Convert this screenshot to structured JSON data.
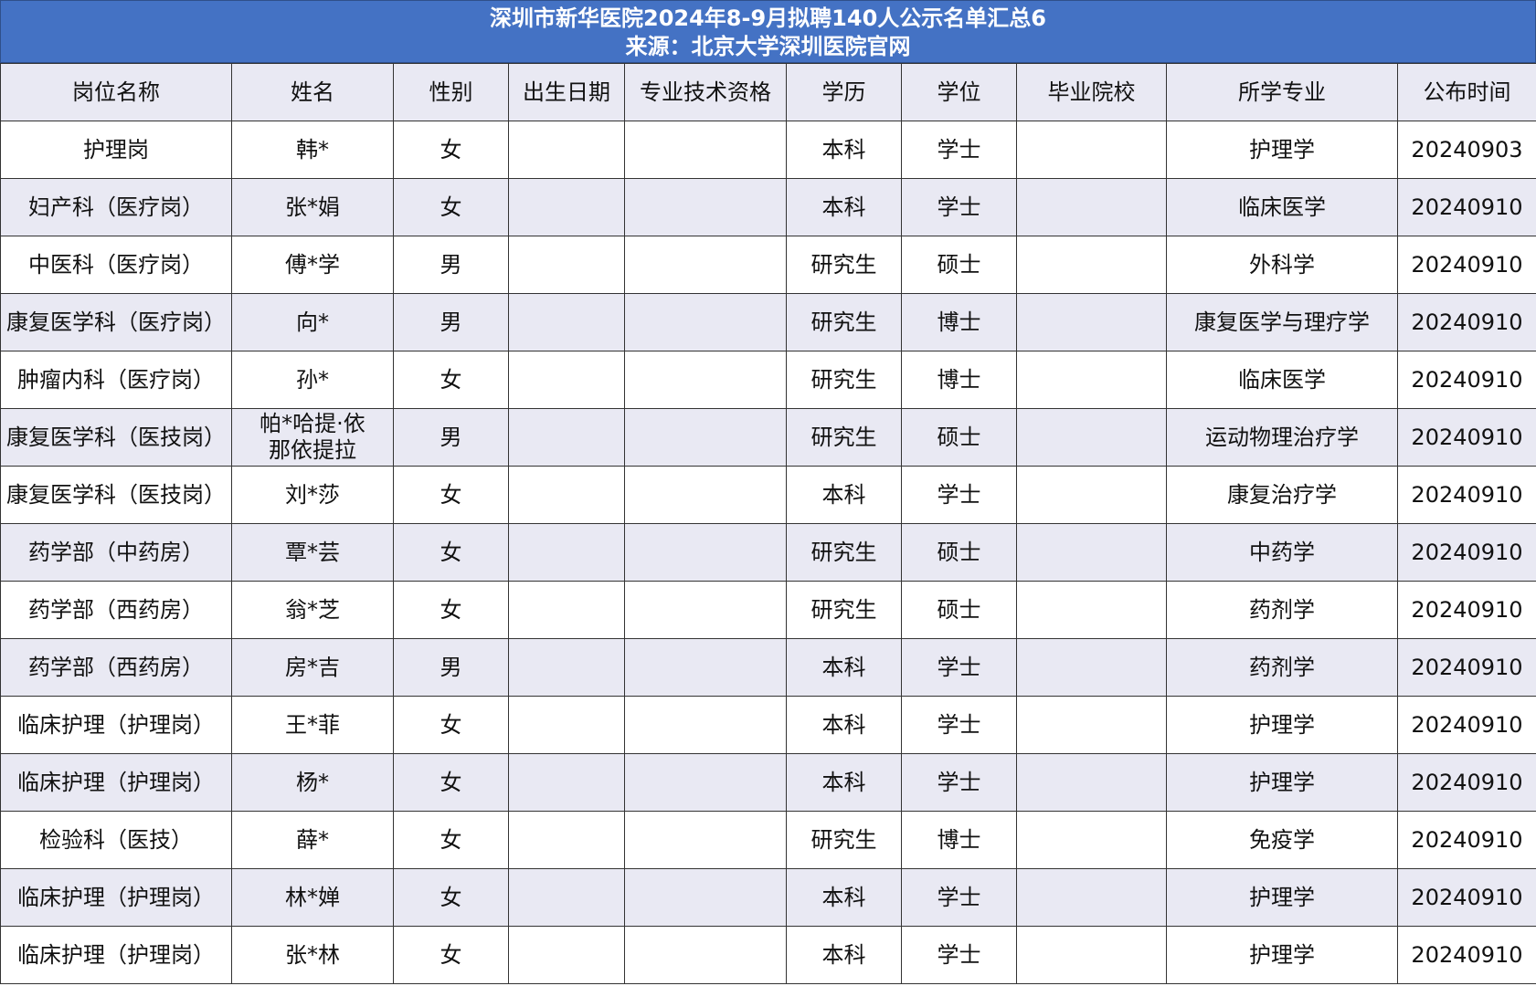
{
  "title": {
    "line1": "深圳市新华医院2024年8-9月拟聘140人公示名单汇总6",
    "line2": "来源：北京大学深圳医院官网"
  },
  "colors": {
    "title_bg": "#4472c4",
    "stripe": "#e9e9f3"
  },
  "columns": [
    "岗位名称",
    "姓名",
    "性别",
    "出生日期",
    "专业技术资格",
    "学历",
    "学位",
    "毕业院校",
    "所学专业",
    "公布时间"
  ],
  "rows": [
    [
      "护理岗",
      "韩*",
      "女",
      "",
      "",
      "本科",
      "学士",
      "",
      "护理学",
      "20240903"
    ],
    [
      "妇产科（医疗岗）",
      "张*娟",
      "女",
      "",
      "",
      "本科",
      "学士",
      "",
      "临床医学",
      "20240910"
    ],
    [
      "中医科（医疗岗）",
      "傅*学",
      "男",
      "",
      "",
      "研究生",
      "硕士",
      "",
      "外科学",
      "20240910"
    ],
    [
      "康复医学科（医疗岗）",
      "向*",
      "男",
      "",
      "",
      "研究生",
      "博士",
      "",
      "康复医学与理疗学",
      "20240910"
    ],
    [
      "肿瘤内科（医疗岗）",
      "孙*",
      "女",
      "",
      "",
      "研究生",
      "博士",
      "",
      "临床医学",
      "20240910"
    ],
    [
      "康复医学科（医技岗）",
      "帕*哈提·依那依提拉",
      "男",
      "",
      "",
      "研究生",
      "硕士",
      "",
      "运动物理治疗学",
      "20240910"
    ],
    [
      "康复医学科（医技岗）",
      "刘*莎",
      "女",
      "",
      "",
      "本科",
      "学士",
      "",
      "康复治疗学",
      "20240910"
    ],
    [
      "药学部（中药房）",
      "覃*芸",
      "女",
      "",
      "",
      "研究生",
      "硕士",
      "",
      "中药学",
      "20240910"
    ],
    [
      "药学部（西药房）",
      "翁*芝",
      "女",
      "",
      "",
      "研究生",
      "硕士",
      "",
      "药剂学",
      "20240910"
    ],
    [
      "药学部（西药房）",
      "房*吉",
      "男",
      "",
      "",
      "本科",
      "学士",
      "",
      "药剂学",
      "20240910"
    ],
    [
      "临床护理（护理岗）",
      "王*菲",
      "女",
      "",
      "",
      "本科",
      "学士",
      "",
      "护理学",
      "20240910"
    ],
    [
      "临床护理（护理岗）",
      "杨*",
      "女",
      "",
      "",
      "本科",
      "学士",
      "",
      "护理学",
      "20240910"
    ],
    [
      "检验科（医技）",
      "薛*",
      "女",
      "",
      "",
      "研究生",
      "博士",
      "",
      "免疫学",
      "20240910"
    ],
    [
      "临床护理（护理岗）",
      "林*婵",
      "女",
      "",
      "",
      "本科",
      "学士",
      "",
      "护理学",
      "20240910"
    ],
    [
      "临床护理（护理岗）",
      "张*林",
      "女",
      "",
      "",
      "本科",
      "学士",
      "",
      "护理学",
      "20240910"
    ]
  ]
}
